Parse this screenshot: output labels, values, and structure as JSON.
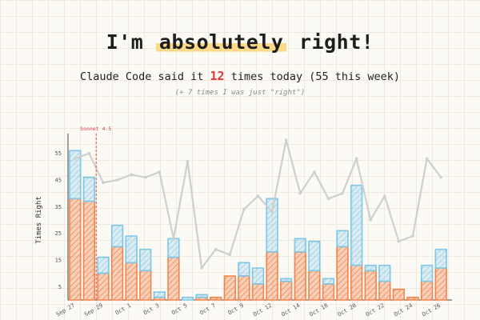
{
  "header": {
    "title_prefix": "I'm ",
    "title_highlight": "absolutely",
    "title_suffix": " right!",
    "subtitle_prefix": "Claude Code said it ",
    "subtitle_count": "12",
    "subtitle_suffix": " times today (55 this week)",
    "note": "(+ 7 times I was just \"right\")"
  },
  "colors": {
    "absolutely": "#f4844c",
    "right": "#7cc6e8",
    "line": "#cfcfcf",
    "marker": "#e04848",
    "highlight": "#fbd98a"
  },
  "chart_data": {
    "type": "bar",
    "ylabel": "Times Right",
    "ylim": [
      0,
      60
    ],
    "yticks": [
      5,
      15,
      25,
      35,
      45,
      55
    ],
    "grid": true,
    "x_tick_labels": [
      "Sep 27",
      "Sep 29",
      "Oct 1",
      "Oct 3",
      "Oct 5",
      "Oct 7",
      "Oct 9",
      "Oct 12",
      "Oct 14",
      "Oct 18",
      "Oct 20",
      "Oct 22",
      "Oct 24",
      "Oct 26"
    ],
    "marker": {
      "label": "Sonnet 4.5",
      "after_bar": 1
    },
    "bars": [
      {
        "abs": 38,
        "right": 18
      },
      {
        "abs": 37,
        "right": 9
      },
      {
        "abs": 10,
        "right": 6
      },
      {
        "abs": 20,
        "right": 8
      },
      {
        "abs": 14,
        "right": 10
      },
      {
        "abs": 11,
        "right": 8
      },
      {
        "abs": 1,
        "right": 2
      },
      {
        "abs": 16,
        "right": 7
      },
      {
        "abs": 0,
        "right": 1
      },
      {
        "abs": 1,
        "right": 1
      },
      {
        "abs": 1,
        "right": 0
      },
      {
        "abs": 9,
        "right": 0
      },
      {
        "abs": 9,
        "right": 5
      },
      {
        "abs": 6,
        "right": 6
      },
      {
        "abs": 18,
        "right": 20
      },
      {
        "abs": 7,
        "right": 1
      },
      {
        "abs": 18,
        "right": 5
      },
      {
        "abs": 11,
        "right": 11
      },
      {
        "abs": 6,
        "right": 2
      },
      {
        "abs": 20,
        "right": 6
      },
      {
        "abs": 13,
        "right": 30
      },
      {
        "abs": 11,
        "right": 2
      },
      {
        "abs": 7,
        "right": 6
      },
      {
        "abs": 4,
        "right": 0
      },
      {
        "abs": 1,
        "right": 0
      },
      {
        "abs": 7,
        "right": 6
      },
      {
        "abs": 12,
        "right": 7
      }
    ],
    "line": [
      53,
      55,
      44,
      45,
      47,
      46,
      48,
      23,
      52,
      12,
      19,
      17,
      34,
      39,
      33,
      60,
      40,
      48,
      38,
      40,
      53,
      30,
      39,
      22,
      24,
      53,
      46
    ]
  }
}
